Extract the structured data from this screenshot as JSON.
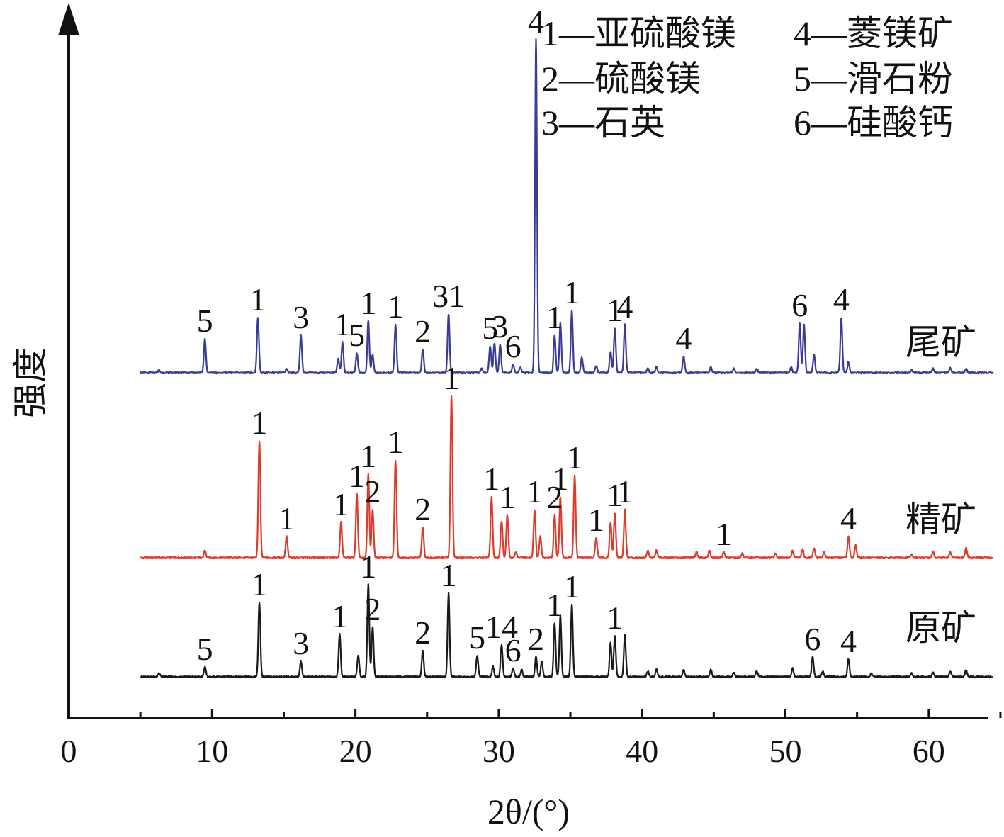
{
  "chart_data": {
    "type": "line",
    "xlabel": "2θ/(°)",
    "ylabel": "强度",
    "xlim": [
      0,
      65
    ],
    "xticks": [
      0,
      10,
      20,
      30,
      40,
      50,
      60
    ],
    "grid": false,
    "legend": [
      {
        "number": "1",
        "text": "1—亚硫酸镁"
      },
      {
        "number": "2",
        "text": "2—硫酸镁"
      },
      {
        "number": "3",
        "text": "3—石英"
      },
      {
        "number": "4",
        "text": "4—菱镁矿"
      },
      {
        "number": "5",
        "text": "5—滑石粉"
      },
      {
        "number": "6",
        "text": "6—硅酸钙"
      }
    ],
    "series": [
      {
        "name": "尾矿",
        "color": "#3a3a9a",
        "baseline": 0,
        "peaks": [
          {
            "x": 6.3,
            "h": 4,
            "lbl": ""
          },
          {
            "x": 9.5,
            "h": 48,
            "lbl": "5"
          },
          {
            "x": 13.2,
            "h": 78,
            "lbl": "1"
          },
          {
            "x": 15.2,
            "h": 5,
            "lbl": ""
          },
          {
            "x": 16.2,
            "h": 53,
            "lbl": "3"
          },
          {
            "x": 18.8,
            "h": 20,
            "lbl": ""
          },
          {
            "x": 19.1,
            "h": 43,
            "lbl": "1"
          },
          {
            "x": 20.1,
            "h": 28,
            "lbl": "5"
          },
          {
            "x": 20.9,
            "h": 73,
            "lbl": "1"
          },
          {
            "x": 21.2,
            "h": 25,
            "lbl": ""
          },
          {
            "x": 22.8,
            "h": 68,
            "lbl": "1"
          },
          {
            "x": 24.7,
            "h": 33,
            "lbl": "2"
          },
          {
            "x": 26.5,
            "h": 83,
            "lbl": "31"
          },
          {
            "x": 28.8,
            "h": 6,
            "lbl": ""
          },
          {
            "x": 29.4,
            "h": 38,
            "lbl": "5"
          },
          {
            "x": 29.7,
            "h": 42,
            "lbl": ""
          },
          {
            "x": 30.1,
            "h": 40,
            "lbl": "3"
          },
          {
            "x": 31.0,
            "h": 12,
            "lbl": "6"
          },
          {
            "x": 31.5,
            "h": 8,
            "lbl": ""
          },
          {
            "x": 32.6,
            "h": 470,
            "lbl": "4"
          },
          {
            "x": 33.9,
            "h": 53,
            "lbl": "1"
          },
          {
            "x": 34.3,
            "h": 70,
            "lbl": ""
          },
          {
            "x": 35.1,
            "h": 88,
            "lbl": "1"
          },
          {
            "x": 35.8,
            "h": 22,
            "lbl": ""
          },
          {
            "x": 36.8,
            "h": 10,
            "lbl": ""
          },
          {
            "x": 37.8,
            "h": 30,
            "lbl": ""
          },
          {
            "x": 38.1,
            "h": 63,
            "lbl": "1"
          },
          {
            "x": 38.8,
            "h": 68,
            "lbl": "4"
          },
          {
            "x": 40.4,
            "h": 6,
            "lbl": ""
          },
          {
            "x": 41.0,
            "h": 8,
            "lbl": ""
          },
          {
            "x": 42.9,
            "h": 23,
            "lbl": "4"
          },
          {
            "x": 44.8,
            "h": 8,
            "lbl": ""
          },
          {
            "x": 46.4,
            "h": 6,
            "lbl": ""
          },
          {
            "x": 48.0,
            "h": 6,
            "lbl": ""
          },
          {
            "x": 50.4,
            "h": 8,
            "lbl": ""
          },
          {
            "x": 51.0,
            "h": 70,
            "lbl": "6"
          },
          {
            "x": 51.3,
            "h": 68,
            "lbl": ""
          },
          {
            "x": 52.0,
            "h": 25,
            "lbl": ""
          },
          {
            "x": 53.9,
            "h": 78,
            "lbl": "4"
          },
          {
            "x": 54.4,
            "h": 15,
            "lbl": ""
          },
          {
            "x": 58.8,
            "h": 4,
            "lbl": ""
          },
          {
            "x": 60.3,
            "h": 6,
            "lbl": ""
          },
          {
            "x": 61.5,
            "h": 7,
            "lbl": ""
          },
          {
            "x": 62.6,
            "h": 6,
            "lbl": ""
          }
        ]
      },
      {
        "name": "精矿",
        "color": "#e03a28",
        "baseline": 0,
        "peaks": [
          {
            "x": 9.5,
            "h": 10,
            "lbl": ""
          },
          {
            "x": 13.3,
            "h": 165,
            "lbl": "1"
          },
          {
            "x": 15.2,
            "h": 30,
            "lbl": "1"
          },
          {
            "x": 19.0,
            "h": 50,
            "lbl": "1"
          },
          {
            "x": 20.1,
            "h": 90,
            "lbl": "1"
          },
          {
            "x": 20.9,
            "h": 118,
            "lbl": "1"
          },
          {
            "x": 21.2,
            "h": 68,
            "lbl": "2"
          },
          {
            "x": 22.8,
            "h": 138,
            "lbl": "1"
          },
          {
            "x": 24.7,
            "h": 43,
            "lbl": "2"
          },
          {
            "x": 26.7,
            "h": 228,
            "lbl": "1"
          },
          {
            "x": 29.5,
            "h": 86,
            "lbl": "1"
          },
          {
            "x": 30.2,
            "h": 52,
            "lbl": ""
          },
          {
            "x": 30.6,
            "h": 60,
            "lbl": "1"
          },
          {
            "x": 31.2,
            "h": 8,
            "lbl": ""
          },
          {
            "x": 32.5,
            "h": 68,
            "lbl": "1"
          },
          {
            "x": 32.9,
            "h": 30,
            "lbl": ""
          },
          {
            "x": 33.9,
            "h": 60,
            "lbl": "2"
          },
          {
            "x": 34.3,
            "h": 86,
            "lbl": "1"
          },
          {
            "x": 35.3,
            "h": 116,
            "lbl": "1"
          },
          {
            "x": 36.8,
            "h": 28,
            "lbl": "1"
          },
          {
            "x": 37.8,
            "h": 50,
            "lbl": ""
          },
          {
            "x": 38.1,
            "h": 63,
            "lbl": "1"
          },
          {
            "x": 38.8,
            "h": 68,
            "lbl": "1"
          },
          {
            "x": 40.4,
            "h": 10,
            "lbl": ""
          },
          {
            "x": 41.0,
            "h": 10,
            "lbl": ""
          },
          {
            "x": 43.8,
            "h": 8,
            "lbl": ""
          },
          {
            "x": 44.7,
            "h": 10,
            "lbl": ""
          },
          {
            "x": 45.7,
            "h": 8,
            "lbl": "1"
          },
          {
            "x": 47.0,
            "h": 6,
            "lbl": ""
          },
          {
            "x": 49.3,
            "h": 6,
            "lbl": ""
          },
          {
            "x": 50.5,
            "h": 10,
            "lbl": ""
          },
          {
            "x": 51.2,
            "h": 12,
            "lbl": ""
          },
          {
            "x": 52.0,
            "h": 14,
            "lbl": ""
          },
          {
            "x": 52.7,
            "h": 8,
            "lbl": ""
          },
          {
            "x": 54.4,
            "h": 30,
            "lbl": "4"
          },
          {
            "x": 54.9,
            "h": 18,
            "lbl": ""
          },
          {
            "x": 58.8,
            "h": 5,
            "lbl": ""
          },
          {
            "x": 60.3,
            "h": 8,
            "lbl": ""
          },
          {
            "x": 61.5,
            "h": 8,
            "lbl": ""
          },
          {
            "x": 62.6,
            "h": 14,
            "lbl": ""
          }
        ]
      },
      {
        "name": "原矿",
        "color": "#1a1a1a",
        "baseline": 0,
        "peaks": [
          {
            "x": 6.3,
            "h": 5,
            "lbl": ""
          },
          {
            "x": 9.5,
            "h": 14,
            "lbl": "5"
          },
          {
            "x": 13.3,
            "h": 105,
            "lbl": "1"
          },
          {
            "x": 16.2,
            "h": 22,
            "lbl": "3"
          },
          {
            "x": 18.9,
            "h": 60,
            "lbl": "1"
          },
          {
            "x": 20.2,
            "h": 30,
            "lbl": ""
          },
          {
            "x": 20.9,
            "h": 130,
            "lbl": "1"
          },
          {
            "x": 21.2,
            "h": 70,
            "lbl": "2"
          },
          {
            "x": 24.7,
            "h": 37,
            "lbl": "2"
          },
          {
            "x": 26.5,
            "h": 118,
            "lbl": "1"
          },
          {
            "x": 28.5,
            "h": 30,
            "lbl": "5"
          },
          {
            "x": 29.6,
            "h": 15,
            "lbl": ""
          },
          {
            "x": 30.2,
            "h": 45,
            "lbl": "14"
          },
          {
            "x": 31.0,
            "h": 12,
            "lbl": "6"
          },
          {
            "x": 31.6,
            "h": 10,
            "lbl": ""
          },
          {
            "x": 32.6,
            "h": 28,
            "lbl": "2"
          },
          {
            "x": 33.0,
            "h": 22,
            "lbl": ""
          },
          {
            "x": 33.9,
            "h": 76,
            "lbl": "1"
          },
          {
            "x": 34.3,
            "h": 86,
            "lbl": ""
          },
          {
            "x": 35.1,
            "h": 102,
            "lbl": "1"
          },
          {
            "x": 37.8,
            "h": 48,
            "lbl": ""
          },
          {
            "x": 38.1,
            "h": 58,
            "lbl": "1"
          },
          {
            "x": 38.8,
            "h": 60,
            "lbl": ""
          },
          {
            "x": 40.4,
            "h": 8,
            "lbl": ""
          },
          {
            "x": 41.0,
            "h": 10,
            "lbl": ""
          },
          {
            "x": 42.9,
            "h": 10,
            "lbl": ""
          },
          {
            "x": 44.8,
            "h": 10,
            "lbl": ""
          },
          {
            "x": 46.4,
            "h": 6,
            "lbl": ""
          },
          {
            "x": 48.0,
            "h": 8,
            "lbl": ""
          },
          {
            "x": 50.5,
            "h": 12,
            "lbl": ""
          },
          {
            "x": 51.9,
            "h": 28,
            "lbl": "6"
          },
          {
            "x": 52.6,
            "h": 8,
            "lbl": ""
          },
          {
            "x": 54.4,
            "h": 25,
            "lbl": "4"
          },
          {
            "x": 56.0,
            "h": 5,
            "lbl": ""
          },
          {
            "x": 58.8,
            "h": 5,
            "lbl": ""
          },
          {
            "x": 60.3,
            "h": 6,
            "lbl": ""
          },
          {
            "x": 61.5,
            "h": 8,
            "lbl": ""
          },
          {
            "x": 62.6,
            "h": 10,
            "lbl": ""
          }
        ]
      }
    ]
  }
}
